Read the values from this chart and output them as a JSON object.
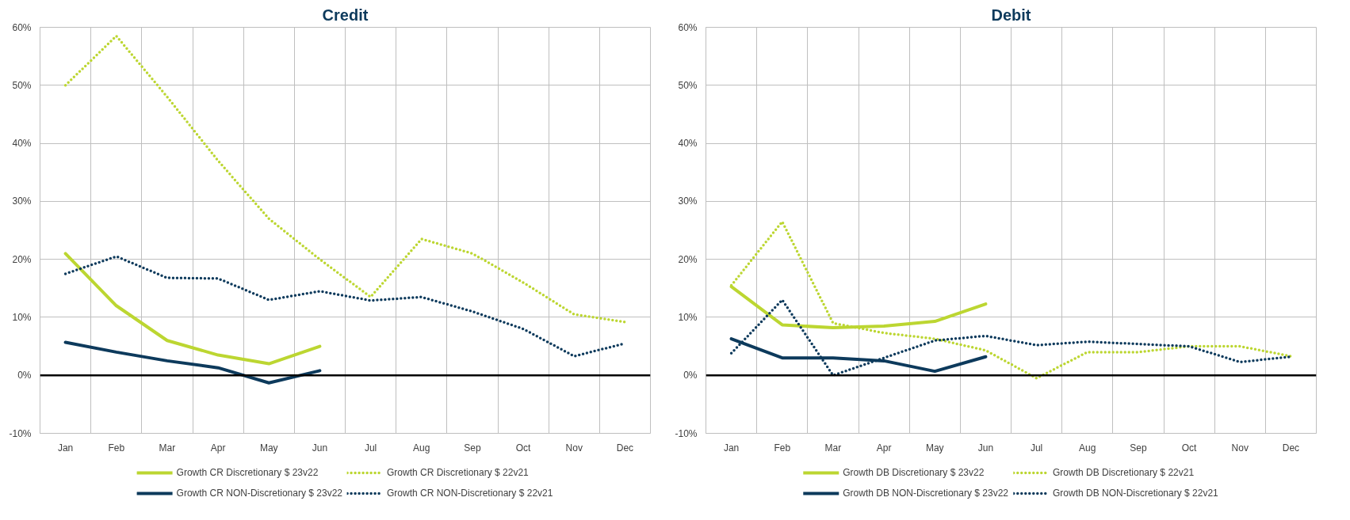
{
  "chart_data": [
    {
      "type": "line",
      "title": "Credit",
      "categories": [
        "Jan",
        "Feb",
        "Mar",
        "Apr",
        "May",
        "Jun",
        "Jul",
        "Aug",
        "Sep",
        "Oct",
        "Nov",
        "Dec"
      ],
      "ylim": [
        -10,
        60
      ],
      "yticks": [
        {
          "value": -10,
          "label": "-10%"
        },
        {
          "value": 0,
          "label": "0%"
        },
        {
          "value": 10,
          "label": "10%"
        },
        {
          "value": 20,
          "label": "20%"
        },
        {
          "value": 30,
          "label": "30%"
        },
        {
          "value": 40,
          "label": "40%"
        },
        {
          "value": 50,
          "label": "50%"
        },
        {
          "value": 60,
          "label": "60%"
        }
      ],
      "grid": true,
      "legend": "bottom",
      "ref_lines": [
        {
          "axis": "y",
          "value": 0,
          "color": "#000000"
        }
      ],
      "series": [
        {
          "name": "Growth CR Discretionary $ 23v22",
          "color": "#bcd631",
          "line_style": "solid",
          "values": [
            21,
            12,
            6,
            3.5,
            2,
            5,
            null,
            null,
            null,
            null,
            null,
            null
          ]
        },
        {
          "name": "Growth CR NON-Discretionary $ 23v22",
          "color": "#0d3a5c",
          "line_style": "solid",
          "values": [
            5.7,
            4,
            2.5,
            1.3,
            -1.3,
            0.8,
            null,
            null,
            null,
            null,
            null,
            null
          ]
        },
        {
          "name": "Growth CR Discretionary $ 22v21",
          "color": "#bcd631",
          "line_style": "dotted",
          "values": [
            50,
            58.5,
            48,
            37,
            27,
            20,
            13.5,
            23.5,
            21,
            16,
            10.5,
            9.2
          ]
        },
        {
          "name": "Growth CR NON-Discretionary $ 22v21",
          "color": "#0d3a5c",
          "line_style": "dotted",
          "values": [
            17.5,
            20.5,
            16.8,
            16.7,
            13,
            14.5,
            12.9,
            13.5,
            11,
            8,
            3.3,
            5.5
          ]
        }
      ]
    },
    {
      "type": "line",
      "title": "Debit",
      "categories": [
        "Jan",
        "Feb",
        "Mar",
        "Apr",
        "May",
        "Jun",
        "Jul",
        "Aug",
        "Sep",
        "Oct",
        "Nov",
        "Dec"
      ],
      "ylim": [
        -10,
        60
      ],
      "yticks": [
        {
          "value": -10,
          "label": "-10%"
        },
        {
          "value": 0,
          "label": "0%"
        },
        {
          "value": 10,
          "label": "10%"
        },
        {
          "value": 20,
          "label": "20%"
        },
        {
          "value": 30,
          "label": "30%"
        },
        {
          "value": 40,
          "label": "40%"
        },
        {
          "value": 50,
          "label": "50%"
        },
        {
          "value": 60,
          "label": "60%"
        }
      ],
      "grid": true,
      "legend": "bottom",
      "ref_lines": [
        {
          "axis": "y",
          "value": 0,
          "color": "#000000"
        }
      ],
      "series": [
        {
          "name": "Growth DB Discretionary $ 23v22",
          "color": "#bcd631",
          "line_style": "solid",
          "values": [
            15.3,
            8.7,
            8.2,
            8.5,
            9.3,
            12.3,
            null,
            null,
            null,
            null,
            null,
            null
          ]
        },
        {
          "name": "Growth DB NON-Discretionary $ 23v22",
          "color": "#0d3a5c",
          "line_style": "solid",
          "values": [
            6.3,
            3,
            3,
            2.5,
            0.7,
            3.2,
            null,
            null,
            null,
            null,
            null,
            null
          ]
        },
        {
          "name": "Growth DB Discretionary $ 22v21",
          "color": "#bcd631",
          "line_style": "dotted",
          "values": [
            15.5,
            26.5,
            9,
            7.3,
            6.3,
            4.3,
            -0.5,
            4,
            4,
            5,
            5,
            3.3
          ]
        },
        {
          "name": "Growth DB NON-Discretionary $ 22v21",
          "color": "#0d3a5c",
          "line_style": "dotted",
          "values": [
            3.8,
            13,
            0,
            3,
            6,
            6.8,
            5.2,
            5.8,
            5.4,
            5,
            2.3,
            3.2
          ]
        }
      ]
    }
  ]
}
